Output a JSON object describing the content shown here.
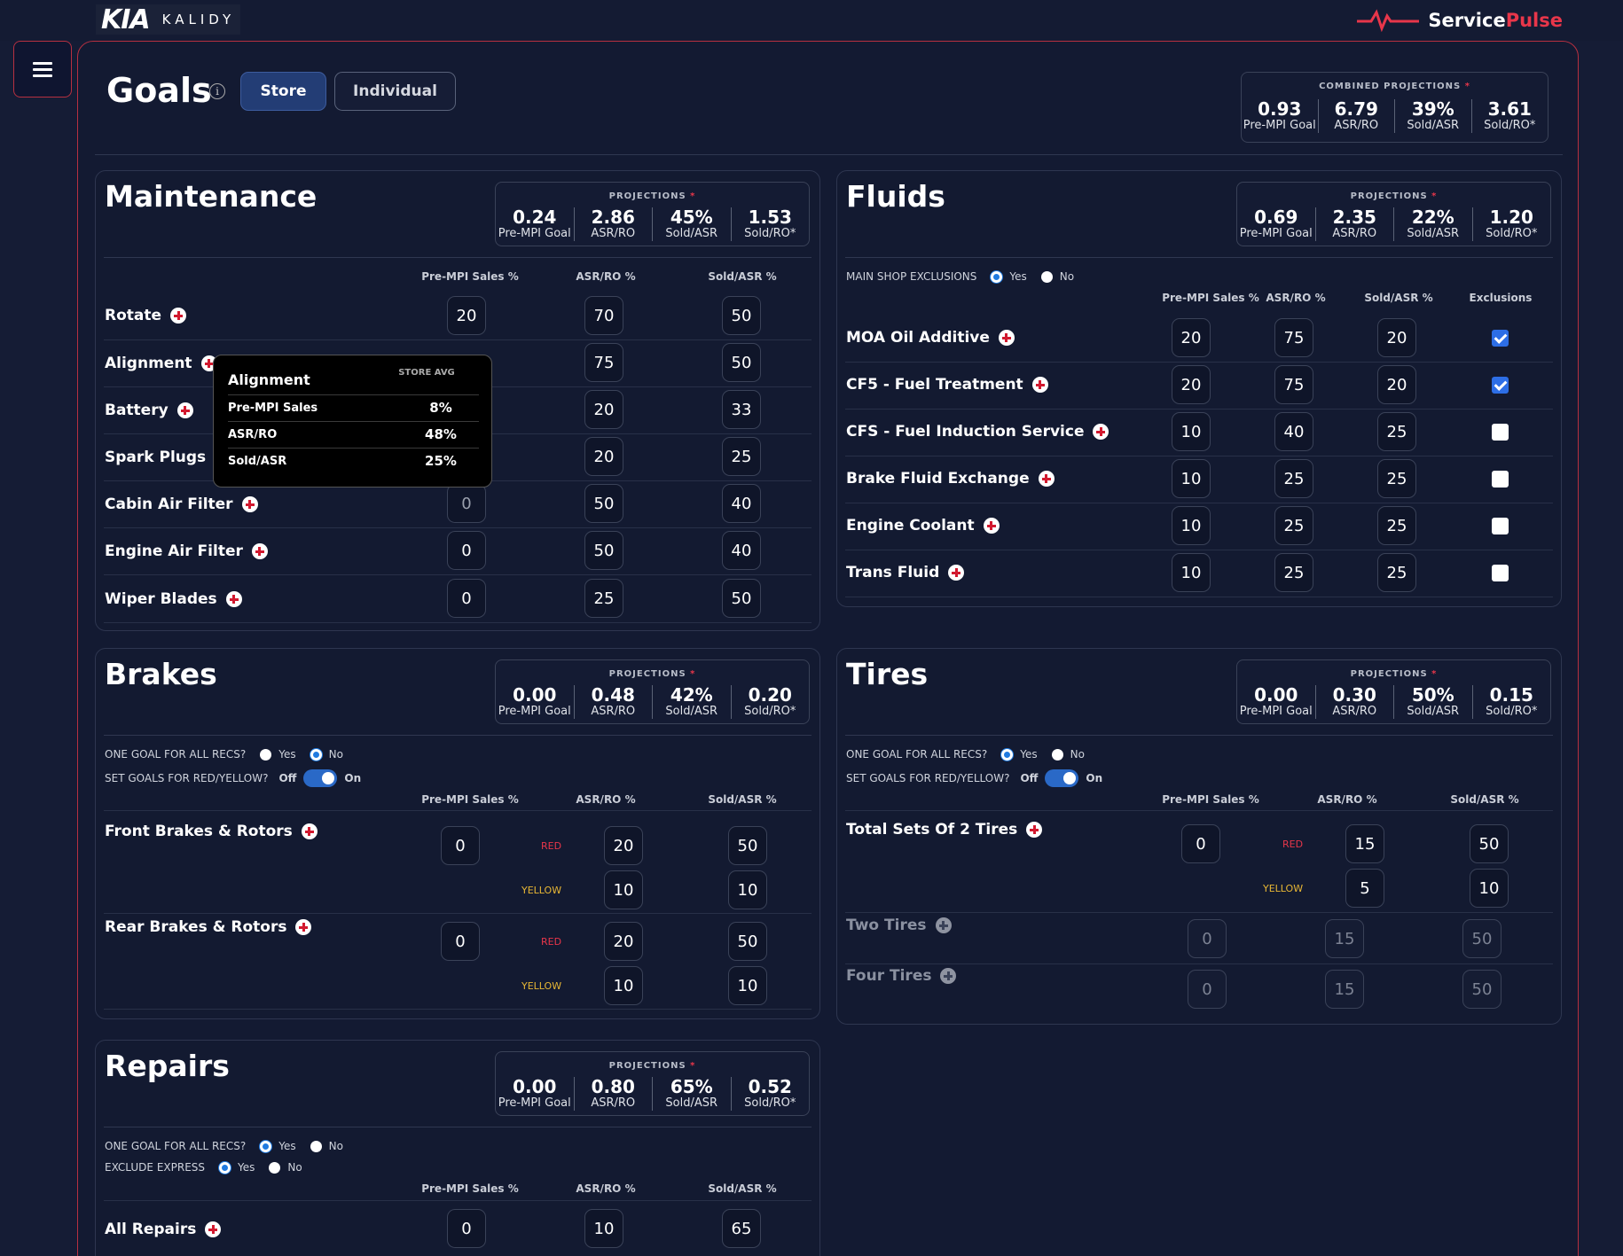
{
  "header": {
    "logo_mark": "KIA",
    "logo_sub": "KALIDY",
    "brand_part1": "Service",
    "brand_part2": "Pulse"
  },
  "page": {
    "title": "Goals",
    "tabs": [
      "Store",
      "Individual"
    ],
    "active_tab": "Store"
  },
  "combined": {
    "heading": "COMBINED PROJECTIONS",
    "values": [
      "0.93",
      "6.79",
      "39%",
      "3.61"
    ],
    "labels": [
      "Pre-MPI Goal",
      "ASR/RO",
      "Sold/ASR",
      "Sold/RO*"
    ]
  },
  "projections_heading": "PROJECTIONS",
  "proj_labels": [
    "Pre-MPI Goal",
    "ASR/RO",
    "Sold/ASR",
    "Sold/RO*"
  ],
  "col_headers": {
    "pre_mpi": "Pre-MPI Sales %",
    "asr_ro": "ASR/RO %",
    "sold_asr": "Sold/ASR %",
    "exclusions": "Exclusions"
  },
  "options": {
    "one_goal": "ONE GOAL FOR ALL RECS?",
    "set_goals": "SET GOALS FOR RED/YELLOW?",
    "main_shop": "MAIN SHOP EXCLUSIONS",
    "exclude_express": "EXCLUDE EXPRESS",
    "yes": "Yes",
    "no": "No",
    "off": "Off",
    "on": "On",
    "red": "RED",
    "yellow": "YELLOW"
  },
  "maintenance": {
    "title": "Maintenance",
    "projections": [
      "0.24",
      "2.86",
      "45%",
      "1.53"
    ],
    "rows": [
      {
        "label": "Rotate",
        "pre": "20",
        "asr": "70",
        "sold": "50"
      },
      {
        "label": "Alignment",
        "pre": "",
        "asr": "75",
        "sold": "50"
      },
      {
        "label": "Battery",
        "pre": "",
        "asr": "20",
        "sold": "33"
      },
      {
        "label": "Spark Plugs",
        "pre": "",
        "asr": "20",
        "sold": "25"
      },
      {
        "label": "Cabin Air Filter",
        "pre": "0",
        "asr": "50",
        "sold": "40"
      },
      {
        "label": "Engine Air Filter",
        "pre": "0",
        "asr": "50",
        "sold": "40"
      },
      {
        "label": "Wiper Blades",
        "pre": "0",
        "asr": "25",
        "sold": "50"
      }
    ]
  },
  "tooltip": {
    "title": "Alignment",
    "store_avg": "STORE AVG",
    "rows": [
      {
        "k": "Pre-MPI Sales",
        "v": "8%"
      },
      {
        "k": "ASR/RO",
        "v": "48%"
      },
      {
        "k": "Sold/ASR",
        "v": "25%"
      }
    ]
  },
  "fluids": {
    "title": "Fluids",
    "projections": [
      "0.69",
      "2.35",
      "22%",
      "1.20"
    ],
    "main_shop_selected": "Yes",
    "rows": [
      {
        "label": "MOA Oil Additive",
        "pre": "20",
        "asr": "75",
        "sold": "20",
        "excl": true
      },
      {
        "label": "CF5 - Fuel Treatment",
        "pre": "20",
        "asr": "75",
        "sold": "20",
        "excl": true
      },
      {
        "label": "CFS - Fuel Induction Service",
        "pre": "10",
        "asr": "40",
        "sold": "25",
        "excl": false
      },
      {
        "label": "Brake Fluid Exchange",
        "pre": "10",
        "asr": "25",
        "sold": "25",
        "excl": false
      },
      {
        "label": "Engine Coolant",
        "pre": "10",
        "asr": "25",
        "sold": "25",
        "excl": false
      },
      {
        "label": "Trans Fluid",
        "pre": "10",
        "asr": "25",
        "sold": "25",
        "excl": false
      }
    ]
  },
  "brakes": {
    "title": "Brakes",
    "projections": [
      "0.00",
      "0.48",
      "42%",
      "0.20"
    ],
    "one_goal_selected": "No",
    "rows": [
      {
        "label": "Front Brakes & Rotors",
        "pre": "0",
        "red_asr": "20",
        "red_sold": "50",
        "yellow_asr": "10",
        "yellow_sold": "10"
      },
      {
        "label": "Rear Brakes & Rotors",
        "pre": "0",
        "red_asr": "20",
        "red_sold": "50",
        "yellow_asr": "10",
        "yellow_sold": "10"
      }
    ]
  },
  "tires": {
    "title": "Tires",
    "projections": [
      "0.00",
      "0.30",
      "50%",
      "0.15"
    ],
    "one_goal_selected": "Yes",
    "main_row": {
      "label": "Total Sets Of 2 Tires",
      "pre": "0",
      "red_asr": "15",
      "red_sold": "50",
      "yellow_asr": "5",
      "yellow_sold": "10"
    },
    "dim_rows": [
      {
        "label": "Two Tires",
        "pre": "0",
        "asr": "15",
        "sold": "50"
      },
      {
        "label": "Four Tires",
        "pre": "0",
        "asr": "15",
        "sold": "50"
      }
    ]
  },
  "repairs": {
    "title": "Repairs",
    "projections": [
      "0.00",
      "0.80",
      "65%",
      "0.52"
    ],
    "one_goal_selected": "Yes",
    "exclude_express_selected": "Yes",
    "rows": [
      {
        "label": "All Repairs",
        "pre": "0",
        "asr": "10",
        "sold": "65"
      }
    ]
  }
}
